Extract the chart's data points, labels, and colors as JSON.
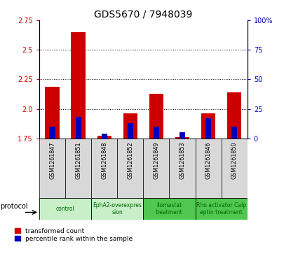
{
  "title": "GDS5670 / 7948039",
  "samples": [
    "GSM1261847",
    "GSM1261851",
    "GSM1261848",
    "GSM1261852",
    "GSM1261849",
    "GSM1261853",
    "GSM1261846",
    "GSM1261850"
  ],
  "red_values": [
    2.19,
    2.65,
    1.77,
    1.96,
    2.13,
    1.76,
    1.96,
    2.14
  ],
  "blue_values": [
    10,
    18,
    4,
    13,
    10,
    5,
    17,
    10
  ],
  "ylim_left": [
    1.75,
    2.75
  ],
  "ylim_right": [
    0,
    100
  ],
  "yticks_left": [
    1.75,
    2.0,
    2.25,
    2.5,
    2.75
  ],
  "yticks_right": [
    0,
    25,
    50,
    75,
    100
  ],
  "ytick_labels_right": [
    "0",
    "25",
    "50",
    "75",
    "100%"
  ],
  "grid_values": [
    2.0,
    2.25,
    2.5
  ],
  "bar_bottom": 1.75,
  "protocols": [
    {
      "label": "control",
      "start": 0,
      "end": 2,
      "color": "#c8efc8"
    },
    {
      "label": "EphA2-overexpres\nsion",
      "start": 2,
      "end": 4,
      "color": "#c8efc8"
    },
    {
      "label": "Ilomastat\ntreatment",
      "start": 4,
      "end": 6,
      "color": "#50c850"
    },
    {
      "label": "Rho activator Calp\neptin treatment",
      "start": 6,
      "end": 8,
      "color": "#50c850"
    }
  ],
  "red_color": "#cc0000",
  "blue_color": "#0000bb",
  "legend_red_label": "transformed count",
  "legend_blue_label": "percentile rank within the sample",
  "left_tick_color": "#cc0000",
  "right_tick_color": "#0000bb",
  "title_fontsize": 10,
  "tick_label_fontsize": 7,
  "bar_width": 0.55,
  "blue_bar_width": 0.22
}
